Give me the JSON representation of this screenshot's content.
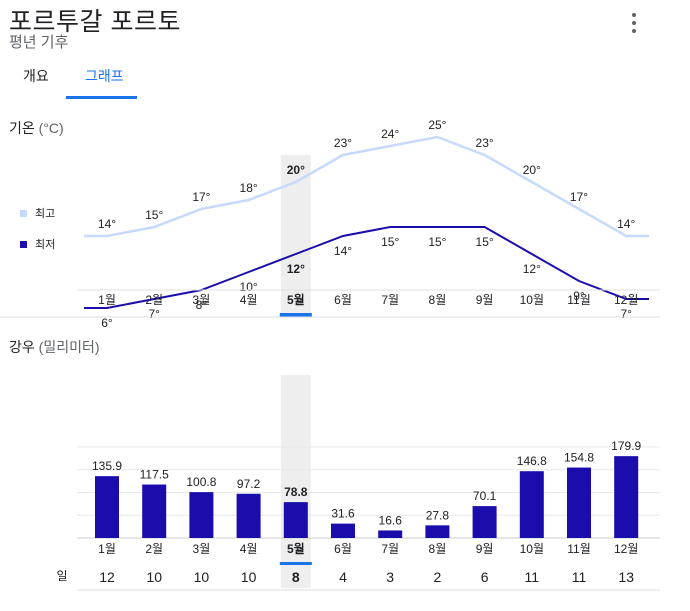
{
  "header": {
    "title": "포르투갈 포르토",
    "subtitle": "평년 기후"
  },
  "tabs": [
    {
      "label": "개요",
      "active": false
    },
    {
      "label": "그래프",
      "active": true
    }
  ],
  "colors": {
    "high_line": "#c6dafc",
    "low_line": "#1a0dab",
    "bar": "#1a0dab",
    "accent": "#1a73e8",
    "selected_band": "#eeeeee",
    "legend_high": "#c6dafc",
    "legend_low": "#1a0dab"
  },
  "selected_month_index": 4,
  "temperature": {
    "title": "기온",
    "unit": "(°C)",
    "legend": {
      "high": "최고",
      "low": "최저"
    }
  },
  "precipitation": {
    "title": "강우",
    "unit": "(밀리미터)",
    "days_label": "일"
  },
  "chart_data": [
    {
      "type": "line",
      "categories": [
        "1월",
        "2월",
        "3월",
        "4월",
        "5월",
        "6월",
        "7월",
        "8월",
        "9월",
        "10월",
        "11월",
        "12월"
      ],
      "series": [
        {
          "name": "최고",
          "values": [
            14,
            15,
            17,
            18,
            20,
            23,
            24,
            25,
            23,
            20,
            17,
            14
          ],
          "labels": [
            "14°",
            "15°",
            "17°",
            "18°",
            "20°",
            "23°",
            "24°",
            "25°",
            "23°",
            "20°",
            "17°",
            "14°"
          ]
        },
        {
          "name": "최저",
          "values": [
            6,
            7,
            8,
            10,
            12,
            14,
            15,
            15,
            15,
            12,
            9,
            7
          ],
          "labels": [
            "6°",
            "7°",
            "8°",
            "10°",
            "12°",
            "14°",
            "15°",
            "15°",
            "15°",
            "12°",
            "9°",
            "7°"
          ]
        }
      ],
      "title": "기온 (°C)"
    },
    {
      "type": "bar",
      "categories": [
        "1월",
        "2월",
        "3월",
        "4월",
        "5월",
        "6월",
        "7월",
        "8월",
        "9월",
        "10월",
        "11월",
        "12월"
      ],
      "values": [
        135.9,
        117.5,
        100.8,
        97.2,
        78.8,
        31.6,
        16.6,
        27.8,
        70.1,
        146.8,
        154.8,
        179.9
      ],
      "value_labels": [
        "135.9",
        "117.5",
        "100.8",
        "97.2",
        "78.8",
        "31.6",
        "16.6",
        "27.8",
        "70.1",
        "146.8",
        "154.8",
        "179.9"
      ],
      "days": [
        "12",
        "10",
        "10",
        "10",
        "8",
        "4",
        "3",
        "2",
        "6",
        "11",
        "11",
        "13"
      ],
      "title": "강우 (밀리미터)",
      "ylim": [
        0,
        200
      ],
      "grid": true
    }
  ]
}
